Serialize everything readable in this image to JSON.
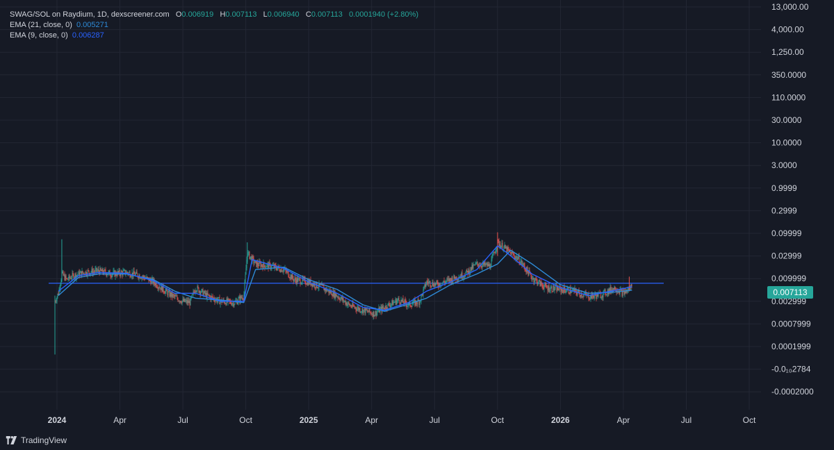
{
  "legend": {
    "symbol": "SWAG/SOL on Raydium, 1D, dexscreener.com",
    "open_label": "O",
    "open": "0.006919",
    "high_label": "H",
    "high": "0.007113",
    "low_label": "L",
    "low": "0.006940",
    "close_label": "C",
    "close": "0.007113",
    "change": "0.0001940 (+2.80%)",
    "ema21_label": "EMA (21, close, 0)",
    "ema21_value": "0.005271",
    "ema9_label": "EMA (9, close, 0)",
    "ema9_value": "0.006287"
  },
  "last_price": "0.007113",
  "brand": "TradingView",
  "colors": {
    "background": "#161a25",
    "grid": "#232734",
    "up": "#26a69a",
    "down": "#ef5350",
    "ema21": "#2e8bd8",
    "ema9": "#2962ff",
    "horizontal_line": "#2962ff",
    "axis_text": "#d1d4dc"
  },
  "chart_data": {
    "type": "line",
    "scale": "log",
    "grid": true,
    "y_ticks": [
      "13,000.00",
      "4,000.00",
      "1,250.00",
      "350.0000",
      "110.0000",
      "30.0000",
      "10.0000",
      "3.0000",
      "0.9999",
      "0.2999",
      "0.09999",
      "0.02999",
      "0.009999",
      "0.002999",
      "0.0007999",
      "0.0001999",
      "-0.0₁₀2784",
      "-0.0002000"
    ],
    "x_ticks": [
      {
        "label": "2024",
        "bold": true
      },
      {
        "label": "Apr",
        "bold": false
      },
      {
        "label": "Jul",
        "bold": false
      },
      {
        "label": "Oct",
        "bold": false
      },
      {
        "label": "2025",
        "bold": true
      },
      {
        "label": "Apr",
        "bold": false
      },
      {
        "label": "Jul",
        "bold": false
      },
      {
        "label": "Oct",
        "bold": false
      },
      {
        "label": "2026",
        "bold": true
      },
      {
        "label": "Apr",
        "bold": false
      },
      {
        "label": "Jul",
        "bold": false
      },
      {
        "label": "Oct",
        "bold": false
      }
    ],
    "horizontal_line_price": 0.0075,
    "price_series": {
      "dates": [
        "2023-12-29",
        "2024-01-03",
        "2024-01-08",
        "2024-01-15",
        "2024-01-25",
        "2024-02-10",
        "2024-03-01",
        "2024-03-20",
        "2024-04-10",
        "2024-05-01",
        "2024-05-20",
        "2024-06-10",
        "2024-07-01",
        "2024-07-12",
        "2024-07-20",
        "2024-08-05",
        "2024-08-25",
        "2024-09-15",
        "2024-09-28",
        "2024-10-03",
        "2024-10-15",
        "2024-11-05",
        "2024-11-25",
        "2024-12-10",
        "2024-12-31",
        "2025-01-20",
        "2025-02-10",
        "2025-03-01",
        "2025-03-20",
        "2025-04-05",
        "2025-04-20",
        "2025-05-10",
        "2025-05-25",
        "2025-06-10",
        "2025-06-20",
        "2025-07-05",
        "2025-07-25",
        "2025-08-15",
        "2025-09-01",
        "2025-09-20",
        "2025-10-01",
        "2025-10-15",
        "2025-11-01",
        "2025-11-20",
        "2025-12-10",
        "2025-12-31",
        "2026-01-20",
        "2026-02-10",
        "2026-03-01",
        "2026-03-20",
        "2026-04-01",
        "2026-04-10",
        "2026-04-14"
      ],
      "close": [
        0.003,
        0.0045,
        0.012,
        0.009,
        0.011,
        0.013,
        0.014,
        0.012,
        0.013,
        0.011,
        0.008,
        0.0045,
        0.003,
        0.0028,
        0.006,
        0.004,
        0.003,
        0.0028,
        0.004,
        0.035,
        0.02,
        0.018,
        0.015,
        0.009,
        0.008,
        0.006,
        0.004,
        0.0024,
        0.0019,
        0.0016,
        0.0022,
        0.0032,
        0.0025,
        0.003,
        0.008,
        0.007,
        0.009,
        0.012,
        0.02,
        0.018,
        0.06,
        0.04,
        0.025,
        0.01,
        0.006,
        0.0055,
        0.005,
        0.0038,
        0.0042,
        0.006,
        0.0045,
        0.0055,
        0.007113
      ]
    },
    "ema21_series": {
      "dates": [
        "2024-01-03",
        "2024-02-01",
        "2024-03-01",
        "2024-04-10",
        "2024-05-20",
        "2024-06-20",
        "2024-07-20",
        "2024-08-25",
        "2024-09-28",
        "2024-10-15",
        "2024-11-25",
        "2024-12-31",
        "2025-02-10",
        "2025-03-20",
        "2025-04-20",
        "2025-05-25",
        "2025-06-20",
        "2025-07-25",
        "2025-09-01",
        "2025-10-01",
        "2025-10-20",
        "2025-11-20",
        "2025-12-31",
        "2026-02-10",
        "2026-03-20",
        "2026-04-14"
      ],
      "values": [
        0.004,
        0.01,
        0.012,
        0.012,
        0.009,
        0.005,
        0.0035,
        0.0032,
        0.0028,
        0.015,
        0.017,
        0.009,
        0.0055,
        0.0025,
        0.0018,
        0.0026,
        0.0035,
        0.007,
        0.012,
        0.02,
        0.04,
        0.02,
        0.007,
        0.0045,
        0.0048,
        0.005271
      ]
    },
    "ema9_series": {
      "dates": [
        "2024-01-03",
        "2024-02-01",
        "2024-03-01",
        "2024-04-10",
        "2024-05-20",
        "2024-06-20",
        "2024-07-20",
        "2024-08-25",
        "2024-09-28",
        "2024-10-10",
        "2024-11-25",
        "2024-12-31",
        "2025-02-10",
        "2025-03-20",
        "2025-04-20",
        "2025-05-25",
        "2025-06-20",
        "2025-07-25",
        "2025-09-01",
        "2025-10-01",
        "2025-10-15",
        "2025-11-20",
        "2025-12-31",
        "2026-02-10",
        "2026-03-20",
        "2026-04-14"
      ],
      "values": [
        0.005,
        0.011,
        0.013,
        0.0125,
        0.0085,
        0.0045,
        0.0045,
        0.003,
        0.003,
        0.025,
        0.016,
        0.008,
        0.0045,
        0.0022,
        0.0019,
        0.0028,
        0.005,
        0.008,
        0.015,
        0.05,
        0.035,
        0.012,
        0.006,
        0.004,
        0.0052,
        0.006287
      ]
    }
  }
}
